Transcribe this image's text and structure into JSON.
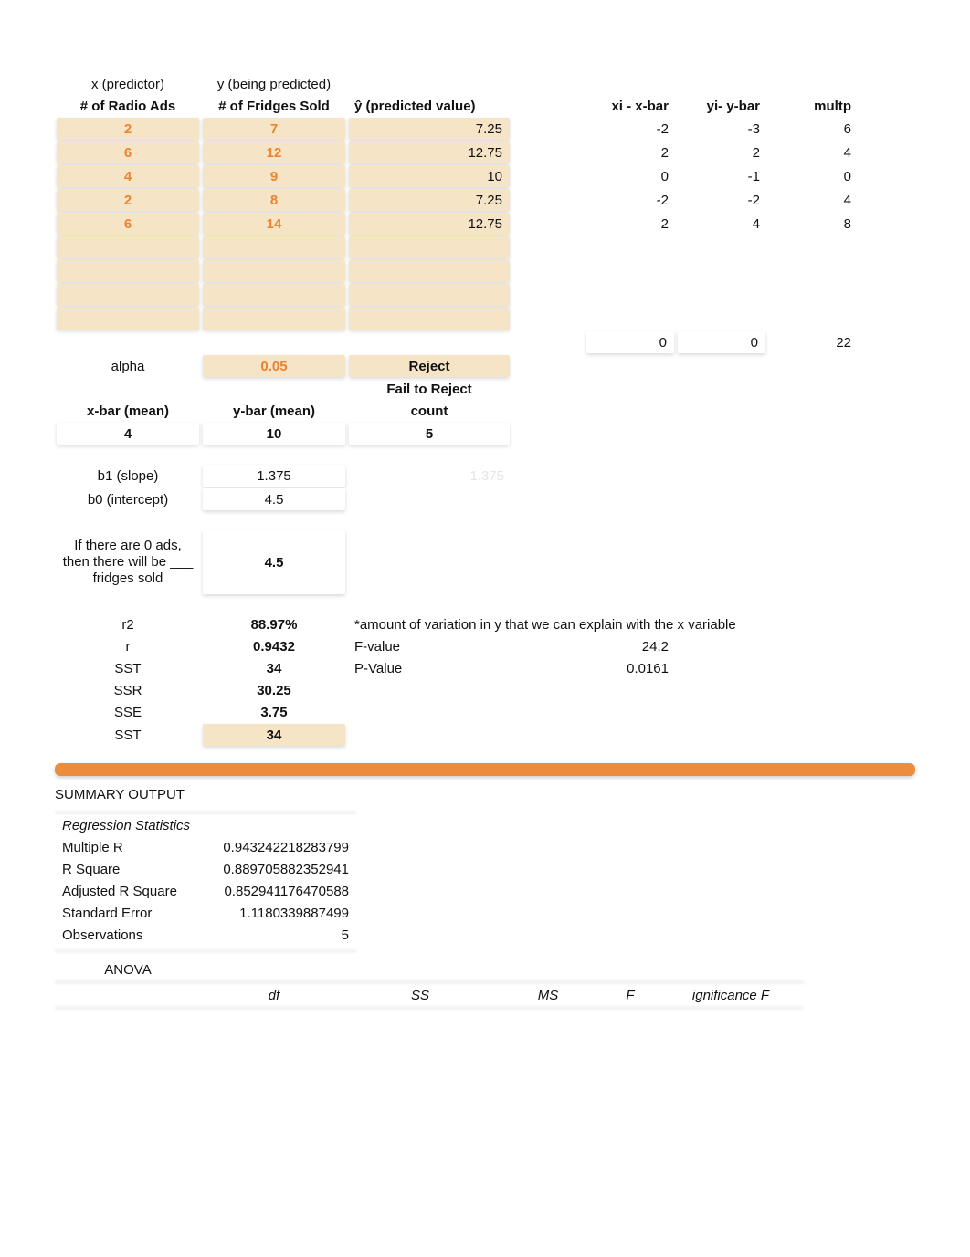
{
  "headers": {
    "x_pred": "x (predictor)",
    "y_pred": "y (being predicted)",
    "radio": "# of Radio Ads",
    "fridges": "# of Fridges Sold",
    "yhat": "ŷ (predicted value)",
    "xixbar": "xi - x-bar",
    "yiybar": "yi- y-bar",
    "multp": "multp"
  },
  "dataRows": [
    {
      "x": "2",
      "y": "7",
      "yhat": "7.25",
      "dx": "-2",
      "dy": "-3",
      "m": "6"
    },
    {
      "x": "6",
      "y": "12",
      "yhat": "12.75",
      "dx": "2",
      "dy": "2",
      "m": "4"
    },
    {
      "x": "4",
      "y": "9",
      "yhat": "10",
      "dx": "0",
      "dy": "-1",
      "m": "0"
    },
    {
      "x": "2",
      "y": "8",
      "yhat": "7.25",
      "dx": "-2",
      "dy": "-2",
      "m": "4"
    },
    {
      "x": "6",
      "y": "14",
      "yhat": "12.75",
      "dx": "2",
      "dy": "4",
      "m": "8"
    }
  ],
  "sums": {
    "dx": "0",
    "dy": "0",
    "m": "22"
  },
  "alphaRow": {
    "label": "alpha",
    "val": "0.05",
    "reject": "Reject",
    "fail": "Fail to Reject"
  },
  "means": {
    "xbar_l": "x-bar (mean)",
    "ybar_l": "y-bar (mean)",
    "count_l": "count",
    "xbar": "4",
    "ybar": "10",
    "count": "5"
  },
  "coef": {
    "b1_l": "b1 (slope)",
    "b1": "1.375",
    "b1faint": "1.375",
    "b0_l": "b0 (intercept)",
    "b0": "4.5"
  },
  "interp": {
    "label": "If there are 0 ads, then there will be ___ fridges sold",
    "val": "4.5"
  },
  "stats": {
    "r2_l": "r2",
    "r2": "88.97%",
    "note": "*amount of variation in y that we can explain with the x variable",
    "r_l": "r",
    "r": "0.9432",
    "f_l": "F-value",
    "f": "24.2",
    "sst_l": "SST",
    "sst": "34",
    "p_l": "P-Value",
    "p": "0.0161",
    "ssr_l": "SSR",
    "ssr": "30.25",
    "sse_l": "SSE",
    "sse": "3.75",
    "sst2_l": "SST",
    "sst2": "34"
  },
  "summary": {
    "title": "SUMMARY OUTPUT",
    "regTitle": "Regression Statistics",
    "rows": [
      {
        "l": "Multiple R",
        "v": "0.943242218283799"
      },
      {
        "l": "R Square",
        "v": "0.889705882352941"
      },
      {
        "l": "Adjusted R Square",
        "v": "0.852941176470588"
      },
      {
        "l": "Standard Error",
        "v": "1.1180339887499"
      },
      {
        "l": "Observations",
        "v": "5"
      }
    ],
    "anova": "ANOVA",
    "anovaHead": {
      "df": "df",
      "ss": "SS",
      "ms": "MS",
      "f": "F",
      "sig": "ignificance F"
    }
  },
  "colors": {
    "tan": "#f6e4c6",
    "orange": "#e98432",
    "orange_bar": "#ec8d3d"
  }
}
